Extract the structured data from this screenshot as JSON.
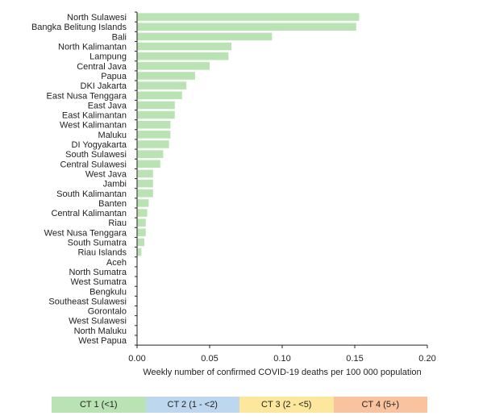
{
  "chart_data": {
    "type": "bar",
    "orientation": "horizontal",
    "categories": [
      "North Sulawesi",
      "Bangka Belitung Islands",
      "Bali",
      "North Kalimantan",
      "Lampung",
      "Central Java",
      "Papua",
      "DKI Jakarta",
      "East Nusa Tenggara",
      "East Java",
      "East Kalimantan",
      "West Kalimantan",
      "Maluku",
      "DI Yogyakarta",
      "South Sulawesi",
      "Central Sulawesi",
      "West Java",
      "Jambi",
      "South Kalimantan",
      "Banten",
      "Central Kalimantan",
      "Riau",
      "West Nusa Tenggara",
      "South Sumatra",
      "Riau Islands",
      "Aceh",
      "North Sumatra",
      "West Sumatra",
      "Bengkulu",
      "Southeast Sulawesi",
      "Gorontalo",
      "West Sulawesi",
      "North Maluku",
      "West Papua"
    ],
    "values": [
      0.153,
      0.151,
      0.093,
      0.065,
      0.063,
      0.05,
      0.04,
      0.034,
      0.031,
      0.026,
      0.026,
      0.023,
      0.023,
      0.022,
      0.018,
      0.016,
      0.011,
      0.011,
      0.011,
      0.008,
      0.007,
      0.006,
      0.006,
      0.005,
      0.003,
      0,
      0,
      0,
      0,
      0,
      0,
      0,
      0,
      0
    ],
    "xlabel": "Weekly number of confirmed COVID-19 deaths per 100 000 population",
    "xlim": [
      0,
      0.2
    ],
    "xticks": [
      "0.00",
      "0.05",
      "0.10",
      "0.15",
      "0.20"
    ],
    "grid": false,
    "bar_color": "#b9e3b3"
  },
  "legend": [
    {
      "label": "CT 1 (<1)",
      "color": "#b9e3b3"
    },
    {
      "label": "CT 2 (1 - <2)",
      "color": "#bcd7ee"
    },
    {
      "label": "CT 3 (2 - <5)",
      "color": "#fce79c"
    },
    {
      "label": "CT 4 (5+)",
      "color": "#f9c3a0"
    }
  ]
}
